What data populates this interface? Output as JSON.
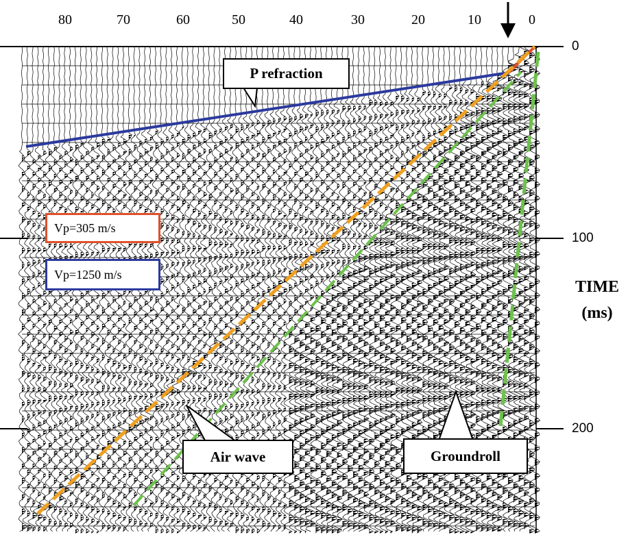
{
  "axes": {
    "distance_ticks": [
      "80",
      "70",
      "60",
      "50",
      "40",
      "30",
      "20",
      "10",
      "0"
    ],
    "time_ticks": [
      "0",
      "100",
      "200"
    ],
    "time_title": "TIME",
    "time_unit": "(ms)"
  },
  "annotations": {
    "p_refraction": "P refraction",
    "air_wave": "Air wave",
    "groundroll": "Groundroll",
    "vp_air": "Vp=305 m/s",
    "vp_refraction": "Vp=1250 m/s"
  },
  "colors": {
    "refraction_line": "#2b3a9e",
    "air_wave_line": "#f0a020",
    "groundroll_line": "#6cc24a",
    "source_line": "#e0502a",
    "vp_air_border": "#e0502a",
    "vp_refraction_border": "#2b3a9e"
  },
  "icons": [
    "source-arrow-icon"
  ]
}
